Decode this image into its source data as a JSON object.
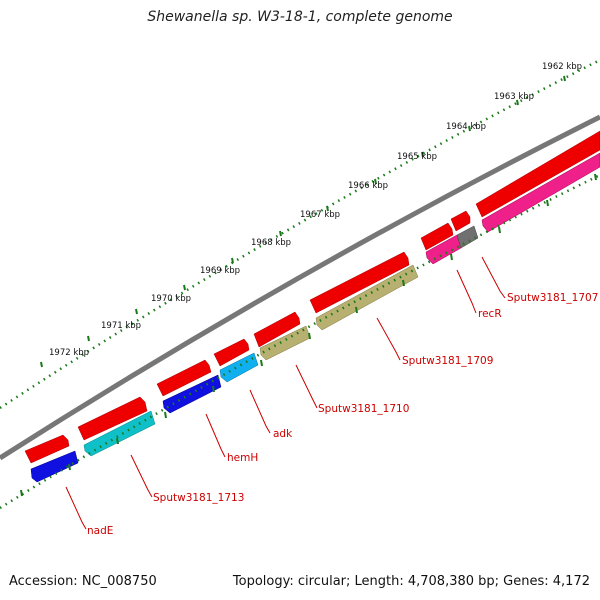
{
  "title": "Shewanella sp. W3-18-1, complete genome",
  "footer": {
    "accession": "Accession: NC_008750",
    "summary": "Topology: circular; Length: 4,708,380 bp; Genes: 4,172"
  },
  "colors": {
    "backbone": "#777777",
    "tick": "#1a7a1a",
    "label_red": "#cc0000",
    "forward_gene": "#ee0000",
    "reverse_gene": "#1010e0",
    "cyan_gene": "#10c0c8",
    "sky_gene": "#10b0f0",
    "olive_gene": "#b8b070",
    "pink_gene": "#f0208a",
    "gray_gene": "#707070"
  },
  "ruler": {
    "labels": [
      "1962 kbp",
      "1963 kbp",
      "1964 kbp",
      "1965 kbp",
      "1966 kbp",
      "1967 kbp",
      "1968 kbp",
      "1969 kbp",
      "1970 kbp",
      "1971 kbp",
      "1972 kbp"
    ]
  },
  "genes": [
    {
      "id": "nadE",
      "label": "nadE",
      "strand": "reverse",
      "color": "reverse_gene"
    },
    {
      "id": "Sputw3181_1713",
      "label": "Sputw3181_1713",
      "strand": "reverse",
      "color": "cyan_gene"
    },
    {
      "id": "hemH",
      "label": "hemH",
      "strand": "reverse",
      "color": "reverse_gene"
    },
    {
      "id": "adk",
      "label": "adk",
      "strand": "reverse",
      "color": "sky_gene"
    },
    {
      "id": "Sputw3181_1710",
      "label": "Sputw3181_1710",
      "strand": "reverse",
      "color": "olive_gene"
    },
    {
      "id": "Sputw3181_1709",
      "label": "Sputw3181_1709",
      "strand": "reverse",
      "color": "olive_gene"
    },
    {
      "id": "recR",
      "label": "recR",
      "strand": "reverse",
      "color": "pink_gene"
    },
    {
      "id": "Sputw3181_1707",
      "label": "Sputw3181_1707",
      "strand": "reverse",
      "color": "pink_gene"
    }
  ]
}
